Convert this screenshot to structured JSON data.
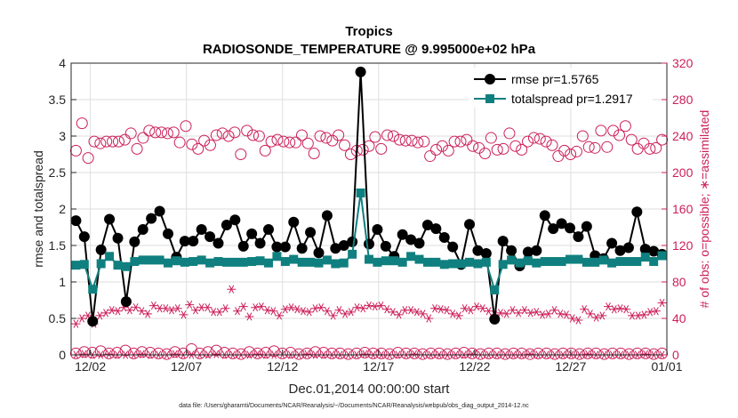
{
  "chart_data": {
    "type": "line",
    "title": "Tropics",
    "subtitle": "RADIOSONDE_TEMPERATURE @ 9.995000e+02 hPa",
    "xlabel": "Dec.01,2014 00:00:00 start",
    "ylabel_left": "rmse and totalspread",
    "ylabel_right": "# of obs: o=possible; ∗=assimilated",
    "footnote": "data file: /Users/gharamti/Documents/NCAR/Reanalysis/~/Documents/NCAR/Reanalysis/webpub/obs_diag_output_2014-12.nc",
    "x_range_days": [
      1,
      32
    ],
    "x_ticks": [
      {
        "day": 2,
        "label": "12/02"
      },
      {
        "day": 7,
        "label": "12/07"
      },
      {
        "day": 12,
        "label": "12/12"
      },
      {
        "day": 17,
        "label": "12/17"
      },
      {
        "day": 22,
        "label": "12/22"
      },
      {
        "day": 27,
        "label": "12/27"
      },
      {
        "day": 32,
        "label": "01/01"
      }
    ],
    "ylim_left": [
      0,
      4
    ],
    "yticks_left": [
      "0",
      "0.5",
      "1",
      "1.5",
      "2",
      "2.5",
      "3",
      "3.5",
      "4"
    ],
    "ylim_right": [
      0,
      320
    ],
    "yticks_right": [
      "0",
      "40",
      "80",
      "120",
      "160",
      "200",
      "240",
      "280",
      "320"
    ],
    "grid": true,
    "legend_position": "top-right",
    "series": [
      {
        "name": "rmse",
        "legend_label": "rmse pr=1.5765",
        "axis": "left",
        "color": "#000000",
        "marker": "circle",
        "values": [
          1.84,
          1.62,
          0.46,
          1.44,
          1.86,
          1.6,
          0.73,
          1.55,
          1.72,
          1.87,
          1.97,
          1.66,
          1.34,
          1.56,
          1.56,
          1.72,
          1.62,
          1.53,
          1.78,
          1.85,
          1.49,
          1.66,
          1.53,
          1.72,
          1.48,
          1.48,
          1.82,
          1.46,
          1.68,
          1.4,
          1.91,
          1.46,
          1.5,
          1.55,
          3.88,
          1.52,
          1.72,
          1.49,
          1.35,
          1.65,
          1.58,
          1.53,
          1.78,
          1.73,
          1.61,
          1.48,
          1.24,
          1.79,
          1.43,
          1.39,
          0.49,
          1.56,
          1.43,
          1.22,
          1.41,
          1.43,
          1.91,
          1.73,
          1.8,
          1.74,
          1.62,
          1.76,
          1.36,
          1.32,
          1.53,
          1.43,
          1.47,
          1.96,
          1.45,
          1.42,
          1.38
        ]
      },
      {
        "name": "totalspread",
        "legend_label": "totalspread pr=1.2917",
        "axis": "left",
        "color": "#0f807f",
        "marker": "square",
        "values": [
          1.23,
          1.24,
          0.9,
          1.25,
          1.35,
          1.23,
          1.21,
          1.28,
          1.3,
          1.3,
          1.3,
          1.26,
          1.29,
          1.27,
          1.28,
          1.3,
          1.26,
          1.28,
          1.27,
          1.27,
          1.27,
          1.28,
          1.29,
          1.26,
          1.35,
          1.28,
          1.31,
          1.27,
          1.27,
          1.26,
          1.3,
          1.25,
          1.26,
          1.38,
          2.22,
          1.31,
          1.27,
          1.29,
          1.29,
          1.27,
          1.35,
          1.31,
          1.27,
          1.27,
          1.24,
          1.25,
          1.25,
          1.27,
          1.25,
          1.27,
          0.89,
          1.24,
          1.3,
          1.26,
          1.29,
          1.26,
          1.28,
          1.28,
          1.28,
          1.31,
          1.31,
          1.27,
          1.27,
          1.3,
          1.26,
          1.28,
          1.28,
          1.28,
          1.34,
          1.28,
          1.36
        ]
      },
      {
        "name": "possible",
        "axis": "right",
        "color": "#cc1f5a",
        "marker": "open-circle",
        "values": [
          224,
          254,
          216,
          234,
          232,
          234,
          234,
          234,
          236,
          243,
          226,
          238,
          246,
          244,
          244,
          243,
          244,
          233,
          251,
          231,
          226,
          235,
          230,
          241,
          243,
          240,
          244,
          220,
          246,
          241,
          240,
          224,
          234,
          236,
          234,
          233,
          233,
          241,
          232,
          221,
          240,
          238,
          235,
          241,
          230,
          220,
          224,
          225,
          229,
          239,
          226,
          241,
          240,
          236,
          235,
          235,
          233,
          234,
          218,
          225,
          229,
          224,
          234,
          234,
          236,
          229,
          227,
          221,
          238,
          225,
          226,
          243,
          229,
          225,
          234,
          238,
          237,
          234,
          230,
          218,
          224,
          220,
          223,
          240,
          228,
          227,
          246,
          228,
          246,
          241,
          251,
          236,
          226,
          232,
          226,
          227,
          236
        ]
      },
      {
        "name": "assimilated",
        "axis": "right",
        "color": "#cc1f5a",
        "marker": "asterisk",
        "values": [
          34,
          40,
          43,
          34,
          43,
          46,
          49,
          48,
          52,
          49,
          52,
          48,
          45,
          54,
          51,
          51,
          49,
          51,
          44,
          55,
          49,
          52,
          52,
          47,
          47,
          51,
          72,
          48,
          53,
          42,
          52,
          53,
          49,
          48,
          43,
          50,
          52,
          50,
          48,
          47,
          51,
          52,
          48,
          43,
          49,
          45,
          47,
          52,
          51,
          54,
          53,
          54,
          50,
          47,
          44,
          49,
          49,
          47,
          45,
          40,
          51,
          50,
          49,
          45,
          43,
          51,
          49,
          53,
          51,
          48,
          44,
          46,
          45,
          49,
          46,
          49,
          46,
          47,
          44,
          45,
          49,
          45,
          44,
          40,
          38,
          50,
          45,
          41,
          43,
          53,
          50,
          51,
          50,
          43,
          43,
          44,
          47,
          48,
          57
        ]
      },
      {
        "name": "possible-low",
        "axis": "left",
        "color": "#cc1f5a",
        "marker": "open-circle",
        "values": [
          0.02,
          0.04,
          0.03,
          0.05,
          0.02,
          0.03,
          0.06,
          0.02,
          0.04,
          0.03,
          0.02,
          0.01,
          0.04,
          0.02,
          0.08,
          0.02,
          0.04,
          0.06,
          0.03,
          0.02,
          0.01,
          0.04,
          0.02,
          0.03,
          0.05,
          0.02,
          0.03,
          0.01,
          0.02,
          0.04,
          0.03,
          0.02,
          0.02,
          0.01,
          0.02,
          0.03,
          0.02,
          0.02,
          0.01,
          0.03,
          0.02,
          0.02,
          0.01,
          0.02,
          0.02,
          0.01,
          0.02,
          0.03,
          0.02,
          0.01,
          0.02,
          0.02,
          0.01,
          0.02,
          0.02,
          0.01,
          0.02,
          0.02,
          0.01,
          0.02,
          0.02,
          0.01,
          0.02,
          0.02,
          0.01,
          0.02,
          0.02,
          0.01,
          0.02,
          0.02,
          0.01,
          0.02
        ]
      },
      {
        "name": "assimilated-low",
        "axis": "left",
        "color": "#cc1f5a",
        "marker": "asterisk",
        "values": [
          0,
          0.01,
          0,
          0,
          0.01,
          0,
          0,
          0,
          0.01,
          0,
          0,
          0,
          0.01,
          0,
          0,
          0,
          0,
          0.01,
          0,
          0,
          0,
          0,
          0.01,
          0,
          0,
          0,
          0,
          0,
          0.01,
          0,
          0,
          0,
          0,
          0,
          0,
          0.01,
          0,
          0,
          0,
          0,
          0,
          0.01,
          0,
          0,
          0,
          0,
          0,
          0,
          0.01,
          0,
          0,
          0,
          0,
          0,
          0,
          0.01,
          0,
          0,
          0,
          0,
          0,
          0,
          0.01,
          0,
          0,
          0,
          0,
          0,
          0,
          0.01,
          0,
          0
        ]
      }
    ]
  }
}
